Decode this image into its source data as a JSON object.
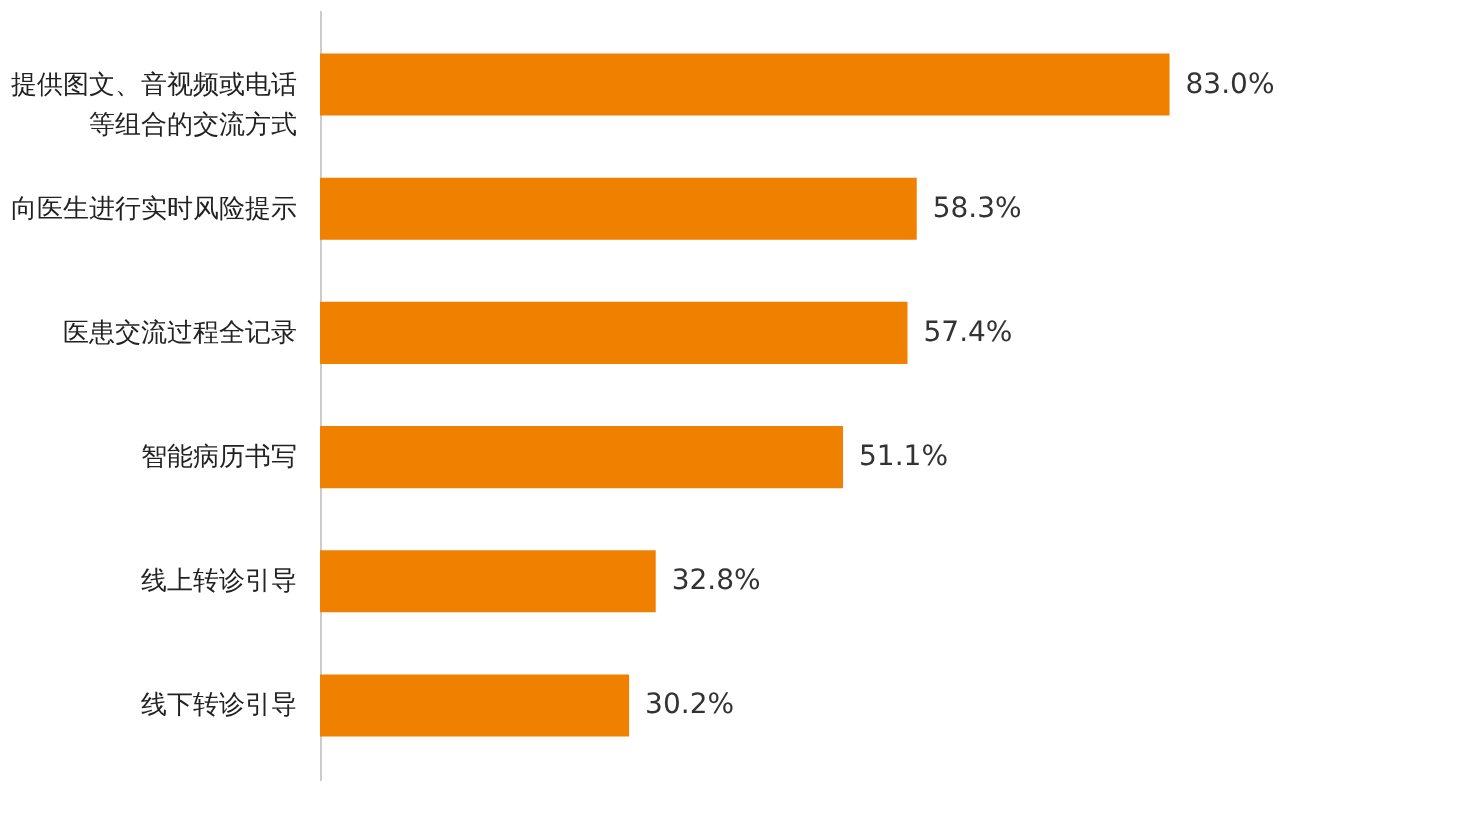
{
  "chart_data": {
    "type": "bar",
    "orientation": "horizontal",
    "categories": [
      "提供图文、音视频或电话等组合的交流方式",
      "向医生进行实时风险提示",
      "医患交流过程全记录",
      "智能病历书写",
      "线上转诊引导",
      "线下转诊引导"
    ],
    "values": [
      83.0,
      58.3,
      57.4,
      51.1,
      32.8,
      30.2
    ],
    "value_labels": [
      "83.0%",
      "58.3%",
      "57.4%",
      "51.1%",
      "32.8%",
      "30.2%"
    ],
    "color": "#f08000"
  }
}
